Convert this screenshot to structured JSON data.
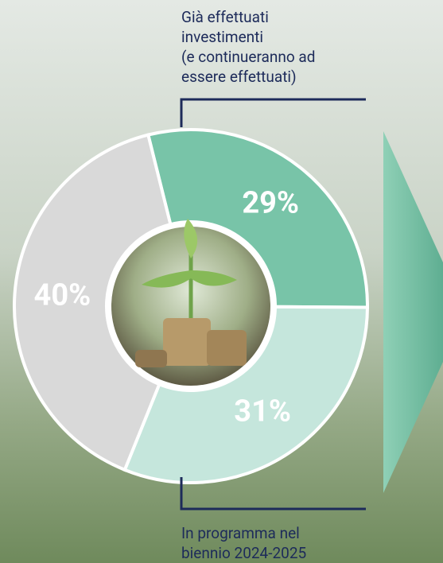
{
  "chart_data": {
    "type": "donut",
    "values": [
      29,
      31,
      40
    ],
    "value_labels": [
      "29%",
      "31%",
      "40%"
    ],
    "colors": [
      "#78c4a8",
      "#c5e6dc",
      "#d9d9d9"
    ],
    "annotations": [
      {
        "lines": [
          "Già effettuati",
          "investimenti",
          "(e continueranno ad",
          "essere effettuati)"
        ]
      },
      {
        "lines": [
          "In programma nel",
          "biennio 2024-2025"
        ]
      }
    ]
  }
}
